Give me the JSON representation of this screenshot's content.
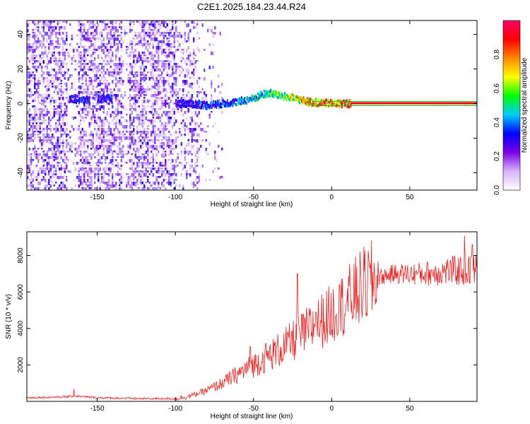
{
  "page_title": "C2E1.2025.184.23.44.R24",
  "chart_data": [
    {
      "type": "heatmap",
      "title": "C2E1.2025.184.23.44.R24",
      "xlabel": "Height of straight line (km)",
      "ylabel": "Frequency (Hz)",
      "xlim": [
        -195,
        93
      ],
      "ylim": [
        -50,
        48
      ],
      "x_ticks": [
        -150,
        -100,
        -50,
        0,
        50
      ],
      "y_ticks": [
        -40,
        -20,
        0,
        20,
        40
      ],
      "colorbar": {
        "label": "Normalized spectral amplitude",
        "range": [
          0.0,
          1.0
        ],
        "ticks": [
          0.0,
          0.2,
          0.4,
          0.6,
          0.8
        ],
        "colors": [
          "#ffffff",
          "#d9b3ff",
          "#7a00e6",
          "#0000ff",
          "#00ccff",
          "#00ff00",
          "#ffff00",
          "#ff8800",
          "#ff0000",
          "#ff0066"
        ]
      },
      "ridge": [
        {
          "x": -165,
          "f": 2.5,
          "a": 0.35
        },
        {
          "x": -160,
          "f": 2.0,
          "a": 0.4
        },
        {
          "x": -150,
          "f": 2.5,
          "a": 0.3
        },
        {
          "x": -145,
          "f": 3.0,
          "a": 0.35
        },
        {
          "x": -100,
          "f": 0.0,
          "a": 0.3
        },
        {
          "x": -90,
          "f": 0.0,
          "a": 0.35
        },
        {
          "x": -80,
          "f": -1.0,
          "a": 0.4
        },
        {
          "x": -70,
          "f": 0.0,
          "a": 0.4
        },
        {
          "x": -60,
          "f": 1.0,
          "a": 0.45
        },
        {
          "x": -50,
          "f": 3.0,
          "a": 0.5
        },
        {
          "x": -45,
          "f": 5.0,
          "a": 0.55
        },
        {
          "x": -40,
          "f": 6.0,
          "a": 0.6
        },
        {
          "x": -35,
          "f": 5.0,
          "a": 0.65
        },
        {
          "x": -30,
          "f": 4.0,
          "a": 0.7
        },
        {
          "x": -25,
          "f": 3.0,
          "a": 0.75
        },
        {
          "x": -20,
          "f": 2.0,
          "a": 0.8
        },
        {
          "x": -15,
          "f": 1.0,
          "a": 0.85
        },
        {
          "x": -10,
          "f": 0.5,
          "a": 0.9
        },
        {
          "x": 0,
          "f": 0.0,
          "a": 0.95
        },
        {
          "x": 90,
          "f": 0.0,
          "a": 0.95
        }
      ]
    },
    {
      "type": "line",
      "xlabel": "Height of straight line (km)",
      "ylabel": "SNR (10 * v/v)",
      "xlim": [
        -195,
        93
      ],
      "ylim": [
        0,
        9300
      ],
      "x_ticks": [
        -150,
        -100,
        -50,
        0,
        50
      ],
      "y_ticks": [
        2000,
        4000,
        6000,
        8000
      ],
      "line_color": "#ee2222",
      "trend": [
        {
          "x": -195,
          "y": 200
        },
        {
          "x": -170,
          "y": 250
        },
        {
          "x": -165,
          "y": 300
        },
        {
          "x": -150,
          "y": 200
        },
        {
          "x": -120,
          "y": 150
        },
        {
          "x": -100,
          "y": 150
        },
        {
          "x": -90,
          "y": 300
        },
        {
          "x": -80,
          "y": 600
        },
        {
          "x": -70,
          "y": 1000
        },
        {
          "x": -60,
          "y": 1500
        },
        {
          "x": -50,
          "y": 2000
        },
        {
          "x": -40,
          "y": 2500
        },
        {
          "x": -30,
          "y": 3000
        },
        {
          "x": -20,
          "y": 3600
        },
        {
          "x": -10,
          "y": 4200
        },
        {
          "x": 0,
          "y": 4800
        },
        {
          "x": 10,
          "y": 5500
        },
        {
          "x": 20,
          "y": 6300
        },
        {
          "x": 30,
          "y": 6800
        },
        {
          "x": 40,
          "y": 7000
        },
        {
          "x": 60,
          "y": 7000
        },
        {
          "x": 75,
          "y": 7150
        },
        {
          "x": 93,
          "y": 7200
        }
      ],
      "spikes": [
        {
          "x": -165,
          "y": 700
        },
        {
          "x": -52,
          "y": 3000
        },
        {
          "x": -42,
          "y": 3200
        },
        {
          "x": -22,
          "y": 7000
        },
        {
          "x": -10,
          "y": 4900
        },
        {
          "x": 5,
          "y": 6400
        },
        {
          "x": 85,
          "y": 9100
        },
        {
          "x": 90,
          "y": 8600
        }
      ]
    }
  ]
}
